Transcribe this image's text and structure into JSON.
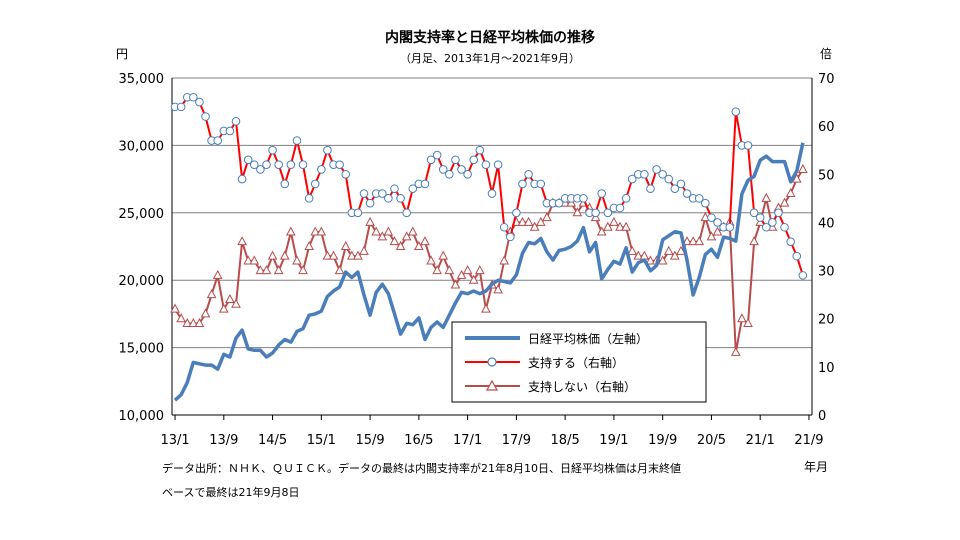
{
  "chart_data": {
    "type": "line",
    "title": "内閣支持率と日経平均株価の推移",
    "subtitle": "（月足、2013年1月～2021年9月）",
    "left_axis": {
      "unit_label": "円",
      "ticks": [
        "35,000",
        "30,000",
        "25,000",
        "20,000",
        "15,000",
        "10,000"
      ],
      "ylim": [
        10000,
        35000
      ]
    },
    "right_axis": {
      "unit_label": "倍",
      "ticks": [
        "70",
        "60",
        "50",
        "40",
        "30",
        "20",
        "10",
        "0"
      ],
      "ylim": [
        0,
        70
      ]
    },
    "x_axis": {
      "unit_label": "年月",
      "ticks": [
        "13/1",
        "13/9",
        "14/5",
        "15/1",
        "15/9",
        "16/5",
        "17/1",
        "17/9",
        "18/5",
        "19/1",
        "19/9",
        "20/5",
        "21/1",
        "21/9"
      ]
    },
    "legend": {
      "nikkei": "日経平均株価（左軸）",
      "support": "支持する（右軸）",
      "nonsupport": "支持しない（右軸）"
    },
    "colors": {
      "nikkei": "#4a7ebb",
      "support": "#ff0000",
      "nonsupport": "#b94b4b"
    },
    "series": [
      {
        "name": "日経平均株価（左軸）",
        "axis": "left",
        "values": [
          11100,
          11500,
          12400,
          13900,
          13800,
          13700,
          13700,
          13400,
          14500,
          14300,
          15700,
          16300,
          14900,
          14800,
          14800,
          14300,
          14600,
          15200,
          15600,
          15400,
          16200,
          16400,
          17400,
          17500,
          17700,
          18800,
          19200,
          19500,
          20600,
          20200,
          20600,
          18900,
          17400,
          19100,
          19700,
          19000,
          17500,
          16000,
          16800,
          16700,
          17200,
          15600,
          16500,
          16900,
          16500,
          17400,
          18300,
          19100,
          19000,
          19200,
          19000,
          19200,
          19700,
          20000,
          19900,
          19800,
          20400,
          22000,
          22800,
          22700,
          23100,
          22100,
          21500,
          22200,
          22300,
          22500,
          22900,
          23900,
          22100,
          22800,
          20100,
          20800,
          21400,
          21200,
          22400,
          20600,
          21300,
          21500,
          20700,
          21100,
          23000,
          23300,
          23600,
          23500,
          21500,
          18900,
          20200,
          21900,
          22300,
          21700,
          23200,
          23100,
          22900,
          26400,
          27400,
          27700,
          28900,
          29200,
          28800,
          28800,
          28800,
          27300,
          28100,
          30200
        ]
      },
      {
        "name": "支持する（右軸）",
        "axis": "right",
        "values": [
          64,
          64,
          66,
          66,
          65,
          62,
          57,
          57,
          59,
          59,
          61,
          49,
          53,
          52,
          51,
          52,
          55,
          52,
          48,
          52,
          57,
          52,
          45,
          48,
          51,
          55,
          52,
          52,
          50,
          42,
          42,
          46,
          44,
          46,
          46,
          45,
          47,
          45,
          42,
          47,
          48,
          48,
          53,
          54,
          51,
          50,
          53,
          51,
          50,
          53,
          55,
          52,
          46,
          52,
          39,
          37,
          42,
          48,
          50,
          48,
          48,
          44,
          44,
          44,
          45,
          45,
          45,
          45,
          42,
          42,
          46,
          42,
          43,
          43,
          45,
          49,
          50,
          50,
          47,
          51,
          50,
          49,
          47,
          48,
          46,
          45,
          45,
          44,
          41,
          40,
          39,
          39,
          63,
          56,
          56,
          42,
          41,
          39,
          40,
          42,
          39,
          36,
          33,
          29
        ]
      },
      {
        "name": "支持しない（右軸）",
        "axis": "right",
        "values": [
          22,
          20,
          19,
          19,
          19,
          21,
          25,
          29,
          22,
          24,
          23,
          36,
          32,
          32,
          30,
          30,
          33,
          30,
          33,
          38,
          32,
          30,
          35,
          38,
          38,
          33,
          33,
          30,
          35,
          33,
          33,
          34,
          40,
          38,
          37,
          38,
          36,
          35,
          37,
          38,
          35,
          36,
          32,
          30,
          33,
          30,
          27,
          29,
          30,
          28,
          30,
          22,
          27,
          26,
          32,
          38,
          40,
          40,
          40,
          39,
          40,
          41,
          44,
          44,
          44,
          44,
          42,
          44,
          43,
          41,
          38,
          39,
          40,
          39,
          39,
          34,
          33,
          33,
          32,
          32,
          32,
          34,
          33,
          34,
          36,
          36,
          36,
          41,
          37,
          38,
          39,
          40,
          13,
          20,
          19,
          36,
          40,
          45,
          39,
          43,
          44,
          46,
          49,
          51
        ]
      }
    ]
  },
  "footnote": {
    "line1": "データ出所：ＮＨＫ、ＱＵＩＣＫ。データの最終は内閣支持率が21年8月10日、日経平均株価は月末終値",
    "line2": "ベースで最終は21年9月8日"
  }
}
